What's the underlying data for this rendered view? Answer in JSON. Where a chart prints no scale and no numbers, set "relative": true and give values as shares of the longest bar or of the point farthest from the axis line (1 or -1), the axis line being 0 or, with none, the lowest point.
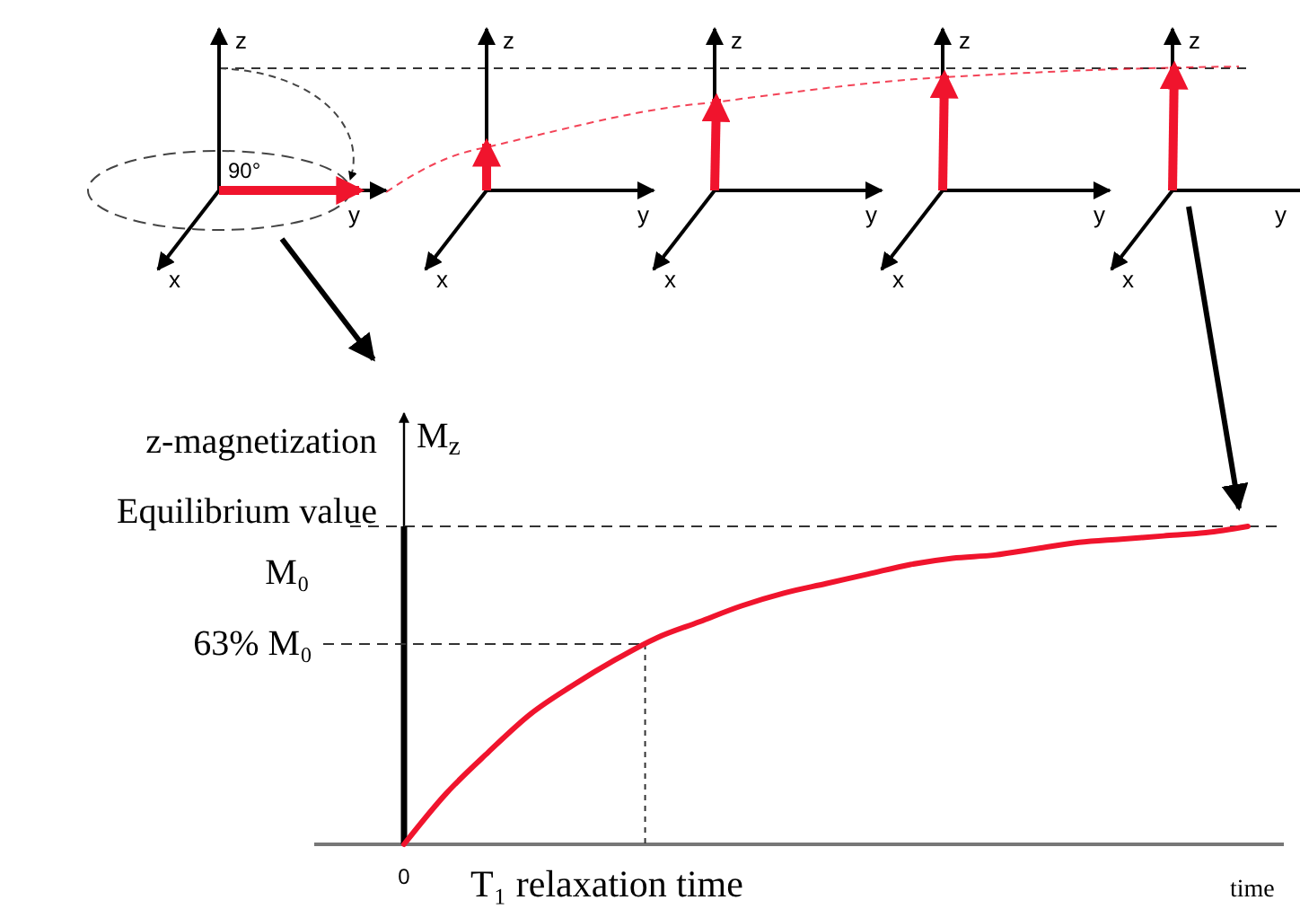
{
  "chart_data": {
    "type": "line",
    "relative": true,
    "xlabel": "T₁ relaxation time",
    "ylabel": "z-magnetization",
    "categories": [
      null,
      null,
      null,
      null,
      null,
      null,
      null,
      null,
      null,
      null,
      null,
      null,
      null,
      null,
      null,
      null,
      null,
      null,
      null,
      null,
      null
    ],
    "series": [
      {
        "color": "#f0142d",
        "values": [
          0,
          0.16,
          0.29,
          0.41,
          0.5,
          0.58,
          0.65,
          0.7,
          0.75,
          0.79,
          0.82,
          0.85,
          0.88,
          0.9,
          0.91,
          0.93,
          0.95,
          0.96,
          0.97,
          0.98,
          1
        ]
      }
    ],
    "ref_lines": [
      {
        "axis": "y",
        "value": 1,
        "label": "Equilibrium value M₀",
        "line_style": "dashed",
        "color": "#333333"
      },
      {
        "axis": "y",
        "value": 0.63,
        "label": "63% M₀",
        "line_style": "dashed",
        "color": "#333333"
      }
    ],
    "annotations": [
      "M$_{z}$",
      "time",
      "90°",
      "z",
      "y",
      "x",
      "z",
      "y",
      "x",
      "z",
      "y",
      "x",
      "z",
      "y",
      "x",
      "z",
      "y",
      "x",
      "0"
    ],
    "line_style": "solid"
  }
}
